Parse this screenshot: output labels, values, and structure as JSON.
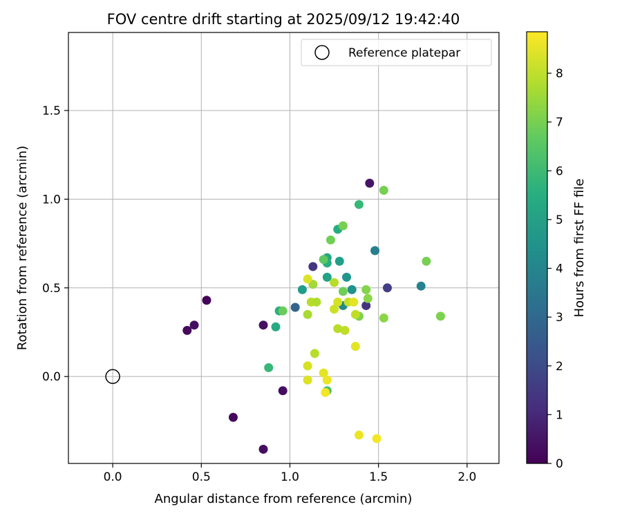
{
  "chart_data": {
    "type": "scatter",
    "title": "FOV centre drift starting at 2025/09/12 19:42:40",
    "xlabel": "Angular distance from reference (arcmin)",
    "ylabel": "Rotation from reference (arcmin)",
    "xlim": [
      -0.25,
      2.18
    ],
    "ylim": [
      -0.49,
      1.94
    ],
    "xticks": [
      0.0,
      0.5,
      1.0,
      1.5,
      2.0
    ],
    "xtick_labels": [
      "0.0",
      "0.5",
      "1.0",
      "1.5",
      "2.0"
    ],
    "yticks": [
      0.0,
      0.5,
      1.0,
      1.5
    ],
    "ytick_labels": [
      "0.0",
      "0.5",
      "1.0",
      "1.5"
    ],
    "grid": true,
    "legend": {
      "placement": "top-right",
      "entries": [
        "Reference platepar"
      ]
    },
    "reference_point": {
      "x": 0.0,
      "y": 0.0,
      "label": "Reference platepar"
    },
    "colorbar": {
      "label": "Hours from first FF file",
      "colormap": "viridis",
      "range": [
        0,
        8.85
      ],
      "ticks": [
        0,
        1,
        2,
        3,
        4,
        5,
        6,
        7,
        8
      ],
      "tick_labels": [
        "0",
        "1",
        "2",
        "3",
        "4",
        "5",
        "6",
        "7",
        "8"
      ]
    },
    "points": [
      {
        "x": 0.42,
        "y": 0.26,
        "c": 0.2
      },
      {
        "x": 0.46,
        "y": 0.29,
        "c": 0.3
      },
      {
        "x": 0.53,
        "y": 0.43,
        "c": 0.1
      },
      {
        "x": 0.68,
        "y": -0.23,
        "c": 0.2
      },
      {
        "x": 0.85,
        "y": -0.41,
        "c": 0.3
      },
      {
        "x": 0.85,
        "y": 0.29,
        "c": 0.4
      },
      {
        "x": 0.96,
        "y": -0.08,
        "c": 0.3
      },
      {
        "x": 1.45,
        "y": 1.09,
        "c": 0.5
      },
      {
        "x": 1.13,
        "y": 0.62,
        "c": 1.4
      },
      {
        "x": 1.55,
        "y": 0.5,
        "c": 1.6
      },
      {
        "x": 1.43,
        "y": 0.4,
        "c": 1.3
      },
      {
        "x": 1.03,
        "y": 0.39,
        "c": 2.8
      },
      {
        "x": 1.48,
        "y": 0.71,
        "c": 3.8
      },
      {
        "x": 1.74,
        "y": 0.51,
        "c": 3.9
      },
      {
        "x": 1.3,
        "y": 0.4,
        "c": 4.2
      },
      {
        "x": 1.32,
        "y": 0.56,
        "c": 4.6
      },
      {
        "x": 1.35,
        "y": 0.49,
        "c": 4.5
      },
      {
        "x": 1.07,
        "y": 0.49,
        "c": 4.9
      },
      {
        "x": 1.28,
        "y": 0.65,
        "c": 5.0
      },
      {
        "x": 1.21,
        "y": 0.56,
        "c": 5.1
      },
      {
        "x": 1.21,
        "y": 0.67,
        "c": 5.3
      },
      {
        "x": 1.21,
        "y": 0.64,
        "c": 5.5
      },
      {
        "x": 0.94,
        "y": 0.37,
        "c": 5.6
      },
      {
        "x": 0.92,
        "y": 0.28,
        "c": 5.4
      },
      {
        "x": 1.27,
        "y": 0.83,
        "c": 5.5
      },
      {
        "x": 1.39,
        "y": 0.97,
        "c": 5.9
      },
      {
        "x": 0.88,
        "y": 0.05,
        "c": 5.9
      },
      {
        "x": 1.21,
        "y": -0.08,
        "c": 6.2
      },
      {
        "x": 0.96,
        "y": 0.37,
        "c": 6.8
      },
      {
        "x": 1.19,
        "y": 0.66,
        "c": 6.6
      },
      {
        "x": 1.23,
        "y": 0.77,
        "c": 6.9
      },
      {
        "x": 1.3,
        "y": 0.85,
        "c": 7.0
      },
      {
        "x": 1.3,
        "y": 0.48,
        "c": 6.9
      },
      {
        "x": 1.39,
        "y": 0.34,
        "c": 7.1
      },
      {
        "x": 1.43,
        "y": 0.49,
        "c": 7.2
      },
      {
        "x": 1.44,
        "y": 0.44,
        "c": 7.3
      },
      {
        "x": 1.53,
        "y": 1.05,
        "c": 7.0
      },
      {
        "x": 1.53,
        "y": 0.33,
        "c": 7.3
      },
      {
        "x": 1.77,
        "y": 0.65,
        "c": 7.0
      },
      {
        "x": 1.85,
        "y": 0.34,
        "c": 7.1
      },
      {
        "x": 1.13,
        "y": 0.52,
        "c": 7.6
      },
      {
        "x": 1.12,
        "y": 0.42,
        "c": 7.9
      },
      {
        "x": 1.15,
        "y": 0.42,
        "c": 7.8
      },
      {
        "x": 1.1,
        "y": 0.35,
        "c": 7.7
      },
      {
        "x": 1.25,
        "y": 0.53,
        "c": 7.9
      },
      {
        "x": 1.27,
        "y": 0.27,
        "c": 7.9
      },
      {
        "x": 1.31,
        "y": 0.26,
        "c": 8.0
      },
      {
        "x": 1.33,
        "y": 0.42,
        "c": 8.1
      },
      {
        "x": 1.14,
        "y": 0.13,
        "c": 7.9
      },
      {
        "x": 1.37,
        "y": 0.35,
        "c": 8.0
      },
      {
        "x": 1.25,
        "y": 0.38,
        "c": 8.2
      },
      {
        "x": 1.1,
        "y": 0.55,
        "c": 8.4
      },
      {
        "x": 1.27,
        "y": 0.42,
        "c": 8.3
      },
      {
        "x": 1.36,
        "y": 0.42,
        "c": 8.5
      },
      {
        "x": 1.37,
        "y": 0.17,
        "c": 8.5
      },
      {
        "x": 1.1,
        "y": 0.06,
        "c": 8.3
      },
      {
        "x": 1.1,
        "y": -0.02,
        "c": 8.4
      },
      {
        "x": 1.19,
        "y": 0.02,
        "c": 8.5
      },
      {
        "x": 1.21,
        "y": -0.02,
        "c": 8.6
      },
      {
        "x": 1.2,
        "y": -0.09,
        "c": 8.7
      },
      {
        "x": 1.39,
        "y": -0.33,
        "c": 8.6
      },
      {
        "x": 1.49,
        "y": -0.35,
        "c": 8.7
      }
    ]
  }
}
